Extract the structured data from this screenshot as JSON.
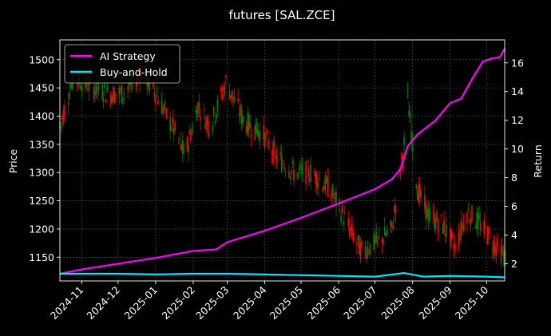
{
  "chart_data": {
    "type": "line",
    "title": "futures [SAL.ZCE]",
    "ylabel_left": "Price",
    "ylabel_right": "Return",
    "xlim": [
      "2024-10-14",
      "2025-10-16"
    ],
    "ylim_left": [
      1108,
      1535
    ],
    "ylim_right": [
      0.8,
      17.6
    ],
    "grid": true,
    "legend_position": "top-left",
    "x_ticks": [
      "2024-11",
      "2024-12",
      "2025-01",
      "2025-02",
      "2025-03",
      "2025-04",
      "2025-05",
      "2025-06",
      "2025-07",
      "2025-08",
      "2025-09",
      "2025-10"
    ],
    "x_tick_dates": [
      "2024-11-01",
      "2024-12-01",
      "2025-01-01",
      "2025-02-01",
      "2025-03-01",
      "2025-04-01",
      "2025-05-01",
      "2025-06-01",
      "2025-07-01",
      "2025-08-01",
      "2025-09-01",
      "2025-10-01"
    ],
    "y_ticks_left": [
      1150,
      1200,
      1250,
      1300,
      1350,
      1400,
      1450,
      1500
    ],
    "y_ticks_right": [
      2,
      4,
      6,
      8,
      10,
      12,
      14,
      16
    ],
    "series": [
      {
        "name": "AI Strategy",
        "color": "#ff00ff",
        "axis": "right",
        "points": [
          [
            "2024-10-14",
            1.3
          ],
          [
            "2024-11-01",
            1.6
          ],
          [
            "2024-12-01",
            2.0
          ],
          [
            "2025-01-01",
            2.4
          ],
          [
            "2025-02-01",
            2.9
          ],
          [
            "2025-02-20",
            3.0
          ],
          [
            "2025-03-01",
            3.5
          ],
          [
            "2025-04-01",
            4.3
          ],
          [
            "2025-05-01",
            5.2
          ],
          [
            "2025-06-01",
            6.2
          ],
          [
            "2025-07-01",
            7.2
          ],
          [
            "2025-07-15",
            7.9
          ],
          [
            "2025-07-22",
            8.6
          ],
          [
            "2025-07-28",
            10.2
          ],
          [
            "2025-08-05",
            11.0
          ],
          [
            "2025-08-20",
            12.0
          ],
          [
            "2025-09-01",
            13.2
          ],
          [
            "2025-09-10",
            13.5
          ],
          [
            "2025-09-20",
            15.0
          ],
          [
            "2025-09-28",
            16.1
          ],
          [
            "2025-10-05",
            16.3
          ],
          [
            "2025-10-12",
            16.4
          ],
          [
            "2025-10-16",
            17.0
          ]
        ]
      },
      {
        "name": "Buy-and-Hold",
        "color": "#00e5ff",
        "axis": "right",
        "points": [
          [
            "2024-10-14",
            1.3
          ],
          [
            "2024-11-01",
            1.3
          ],
          [
            "2024-12-01",
            1.3
          ],
          [
            "2025-01-01",
            1.25
          ],
          [
            "2025-02-01",
            1.3
          ],
          [
            "2025-03-01",
            1.3
          ],
          [
            "2025-04-01",
            1.25
          ],
          [
            "2025-05-01",
            1.2
          ],
          [
            "2025-06-01",
            1.15
          ],
          [
            "2025-07-01",
            1.1
          ],
          [
            "2025-07-25",
            1.35
          ],
          [
            "2025-08-10",
            1.1
          ],
          [
            "2025-09-01",
            1.15
          ],
          [
            "2025-10-01",
            1.1
          ],
          [
            "2025-10-16",
            1.05
          ]
        ]
      },
      {
        "name": "Price",
        "type": "candlestick",
        "axis": "left",
        "up_color": "#008000",
        "down_color": "#ff0000",
        "points": [
          [
            "2024-10-14",
            1380
          ],
          [
            "2024-10-25",
            1470
          ],
          [
            "2024-11-10",
            1450
          ],
          [
            "2024-11-25",
            1440
          ],
          [
            "2024-12-05",
            1440
          ],
          [
            "2024-12-20",
            1480
          ],
          [
            "2025-01-01",
            1440
          ],
          [
            "2025-01-15",
            1380
          ],
          [
            "2025-01-25",
            1330
          ],
          [
            "2025-02-05",
            1420
          ],
          [
            "2025-02-15",
            1380
          ],
          [
            "2025-02-28",
            1460
          ],
          [
            "2025-03-15",
            1390
          ],
          [
            "2025-03-30",
            1370
          ],
          [
            "2025-04-10",
            1330
          ],
          [
            "2025-04-25",
            1300
          ],
          [
            "2025-05-10",
            1300
          ],
          [
            "2025-05-25",
            1270
          ],
          [
            "2025-06-10",
            1200
          ],
          [
            "2025-06-20",
            1160
          ],
          [
            "2025-07-05",
            1180
          ],
          [
            "2025-07-15",
            1200
          ],
          [
            "2025-07-25",
            1350
          ],
          [
            "2025-07-28",
            1430
          ],
          [
            "2025-08-05",
            1270
          ],
          [
            "2025-08-15",
            1220
          ],
          [
            "2025-08-25",
            1210
          ],
          [
            "2025-09-05",
            1170
          ],
          [
            "2025-09-15",
            1230
          ],
          [
            "2025-09-25",
            1210
          ],
          [
            "2025-10-05",
            1180
          ],
          [
            "2025-10-16",
            1150
          ]
        ]
      }
    ]
  }
}
